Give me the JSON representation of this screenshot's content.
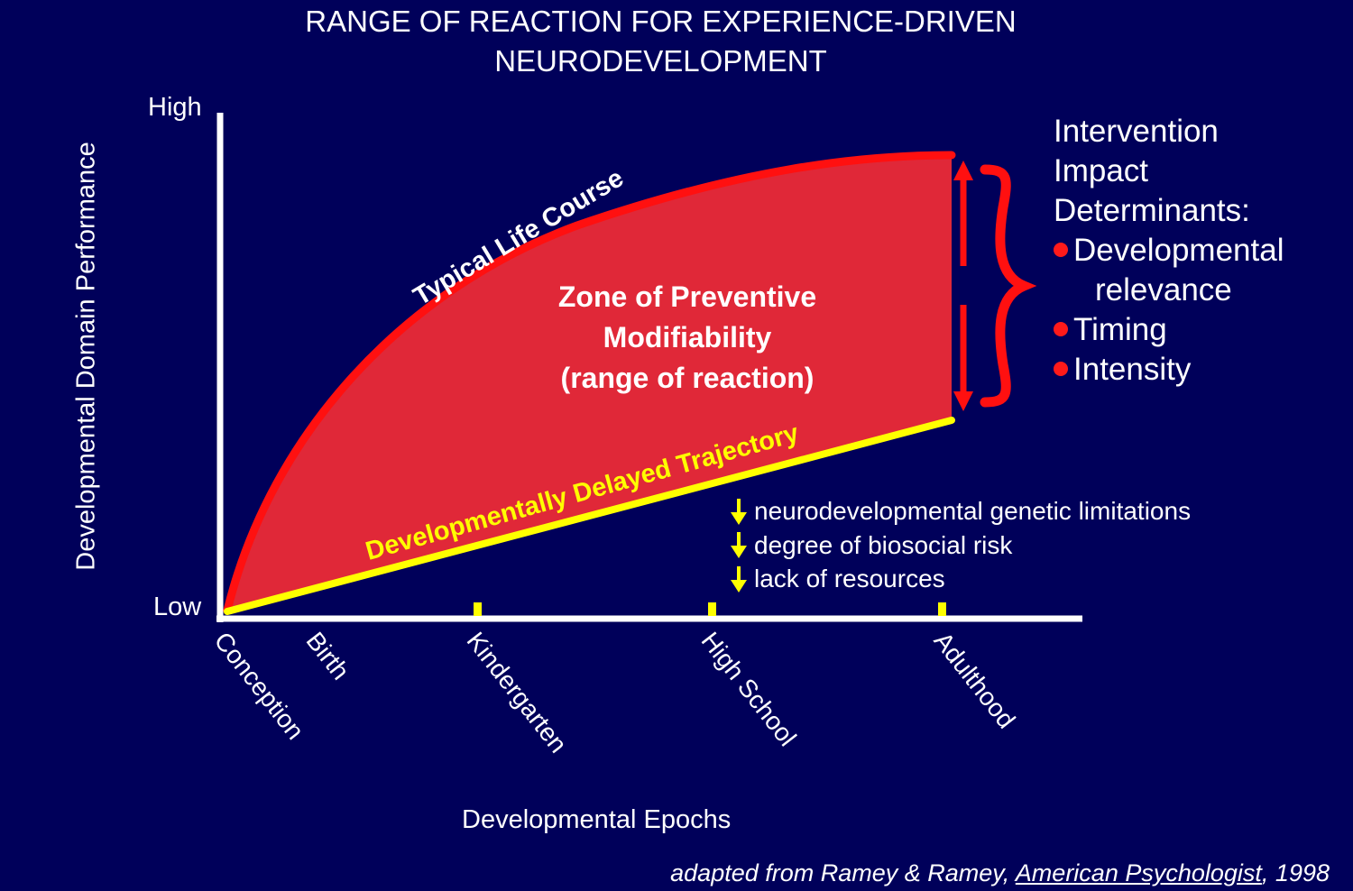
{
  "title": {
    "line1": "RANGE OF REACTION FOR EXPERIENCE-DRIVEN",
    "line2": "NEURODEVELOPMENT"
  },
  "axes": {
    "y_label": "Developmental Domain Performance",
    "y_high": "High",
    "y_low": "Low",
    "x_label": "Developmental Epochs"
  },
  "epochs": [
    "Conception",
    "Birth",
    "Kindergarten",
    "High School",
    "Adulthood"
  ],
  "curves": {
    "typical": "Typical Life Course",
    "delayed": "Developmentally Delayed Trajectory"
  },
  "zone": {
    "line1": "Zone of Preventive",
    "line2": "Modifiability",
    "line3": "(range of reaction)"
  },
  "determinants": {
    "heading_line1": "Intervention",
    "heading_line2": "Impact",
    "heading_line3": "Determinants:",
    "items": [
      {
        "line1": "Developmental",
        "line2": "relevance"
      },
      {
        "line1": "Timing"
      },
      {
        "line1": "Intensity"
      }
    ]
  },
  "factors": [
    "neurodevelopmental genetic limitations",
    "degree of biosocial risk",
    "lack of resources"
  ],
  "citation": {
    "prefix": "adapted from Ramey & Ramey, ",
    "journal": "American Psychologist",
    "suffix": ", 1998"
  },
  "colors": {
    "background": "#00005a",
    "zone_fill": "#e02838",
    "typical_curve": "#ff1010",
    "delayed_curve": "#ffff00",
    "axis": "#ffffff",
    "factor_arrow": "#ffff00"
  }
}
